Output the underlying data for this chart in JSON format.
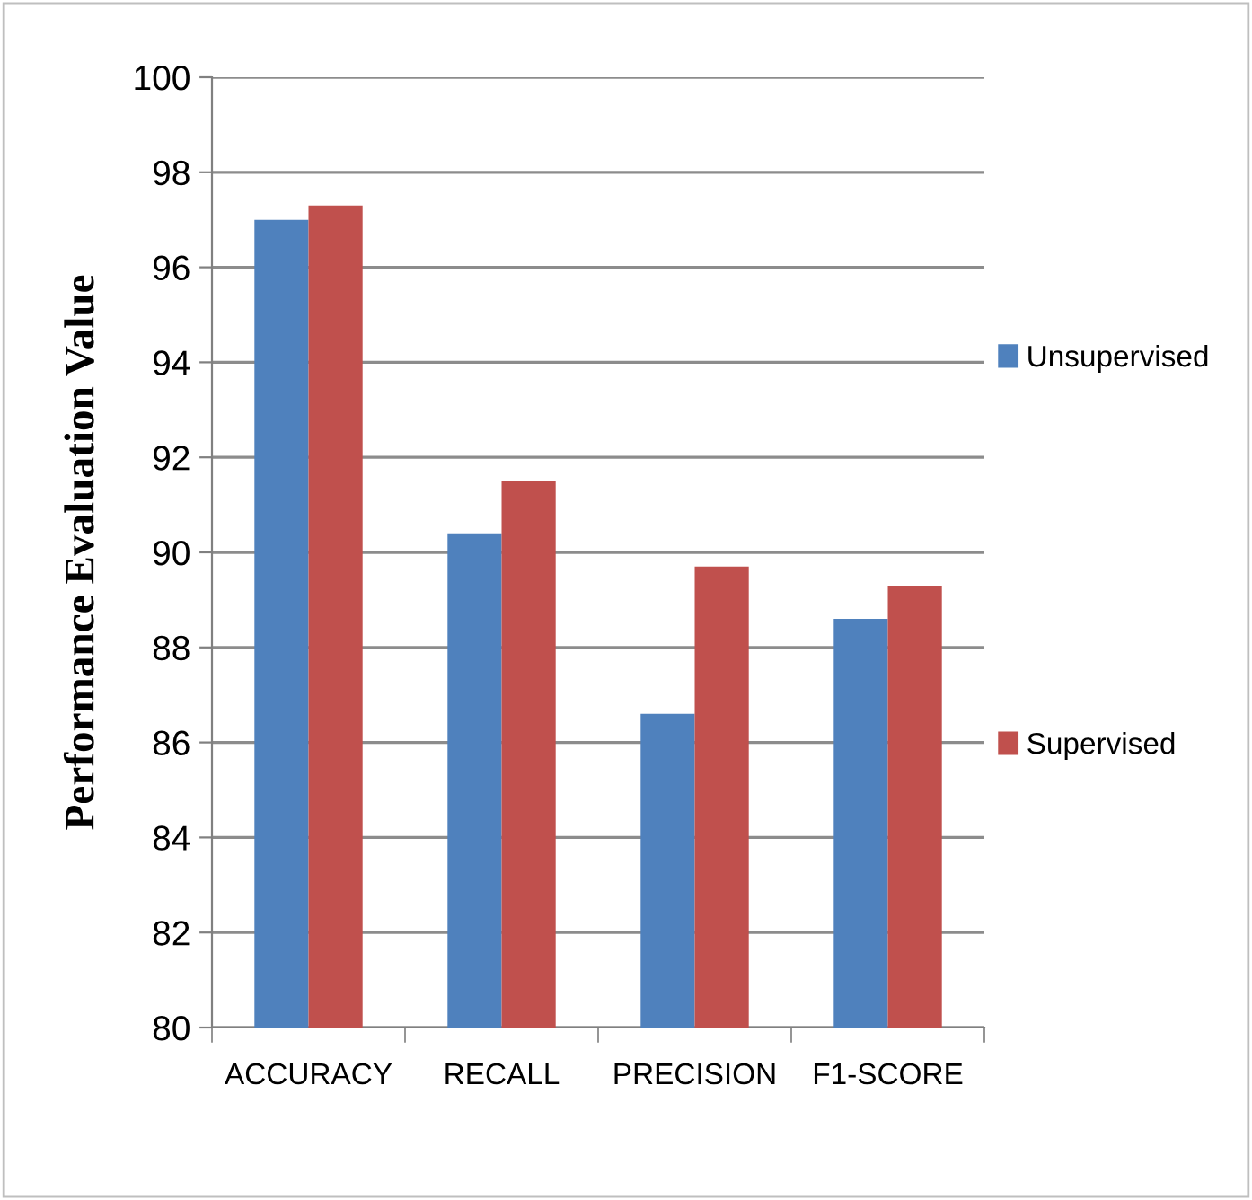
{
  "chart_data": {
    "type": "bar",
    "ylabel": "Performance Evaluation Value",
    "categories": [
      "ACCURACY",
      "RECALL",
      "PRECISION",
      "F1-SCORE"
    ],
    "series": [
      {
        "name": "Unsupervised",
        "color": "#4f81bd",
        "values": [
          97.0,
          90.4,
          86.6,
          88.6
        ]
      },
      {
        "name": "Supervised",
        "color": "#c0504d",
        "values": [
          97.3,
          91.5,
          89.7,
          89.3
        ]
      }
    ],
    "ylim": [
      80,
      100
    ],
    "yticks": [
      80,
      82,
      84,
      86,
      88,
      90,
      92,
      94,
      96,
      98,
      100
    ],
    "grid": "y",
    "legend": "right"
  }
}
